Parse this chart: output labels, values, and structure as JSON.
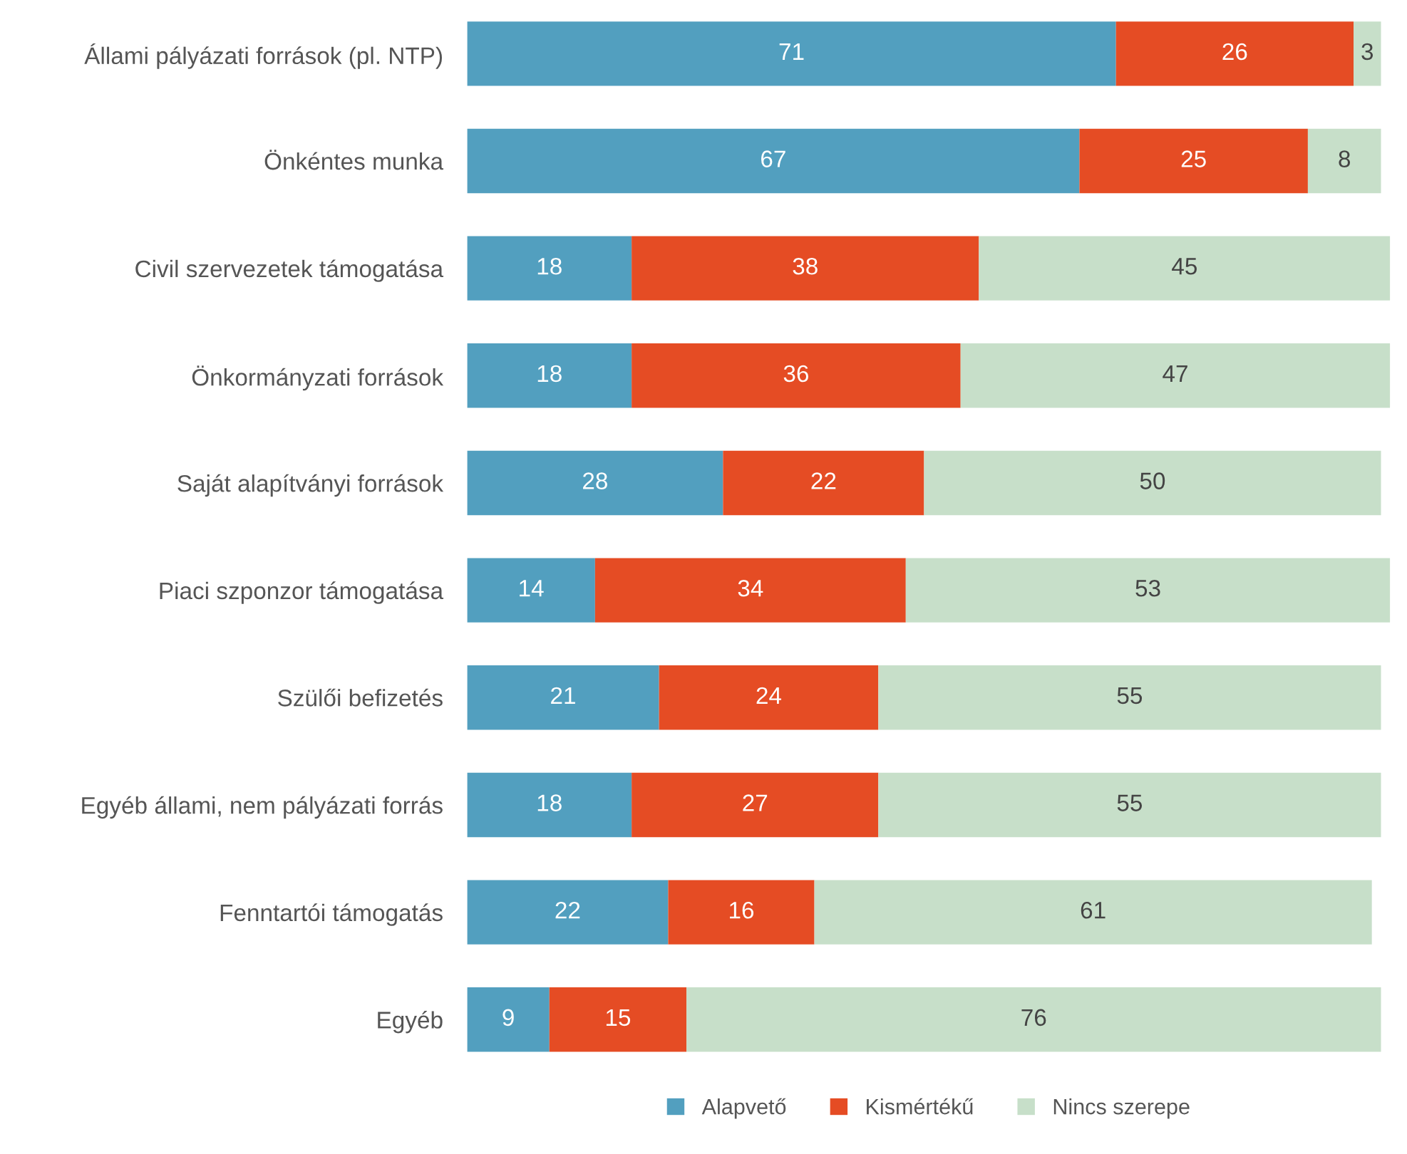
{
  "chart_data": {
    "type": "bar",
    "orientation": "horizontal",
    "stacked": true,
    "data_labels": true,
    "legend": "bottom",
    "grid": false,
    "categories": [
      "Állami pályázati források (pl. NTP)",
      "Önkéntes munka",
      "Civil szervezetek támogatása",
      "Önkormányzati források",
      "Saját alapítványi források",
      "Piaci szponzor támogatása",
      "Szülői befizetés",
      "Egyéb állami, nem pályázati forrás",
      "Fenntartói támogatás",
      "Egyéb"
    ],
    "series": [
      {
        "name": "Alapvető",
        "color": "#529fbf",
        "values": [
          71,
          67,
          18,
          18,
          28,
          14,
          21,
          18,
          22,
          9
        ]
      },
      {
        "name": "Kismértékű",
        "color": "#e54c24",
        "values": [
          26,
          25,
          38,
          36,
          22,
          34,
          24,
          27,
          16,
          15
        ]
      },
      {
        "name": "Nincs szerepe",
        "color": "#c7dfc9",
        "values": [
          3,
          8,
          45,
          47,
          50,
          53,
          55,
          55,
          61,
          76
        ]
      }
    ]
  }
}
